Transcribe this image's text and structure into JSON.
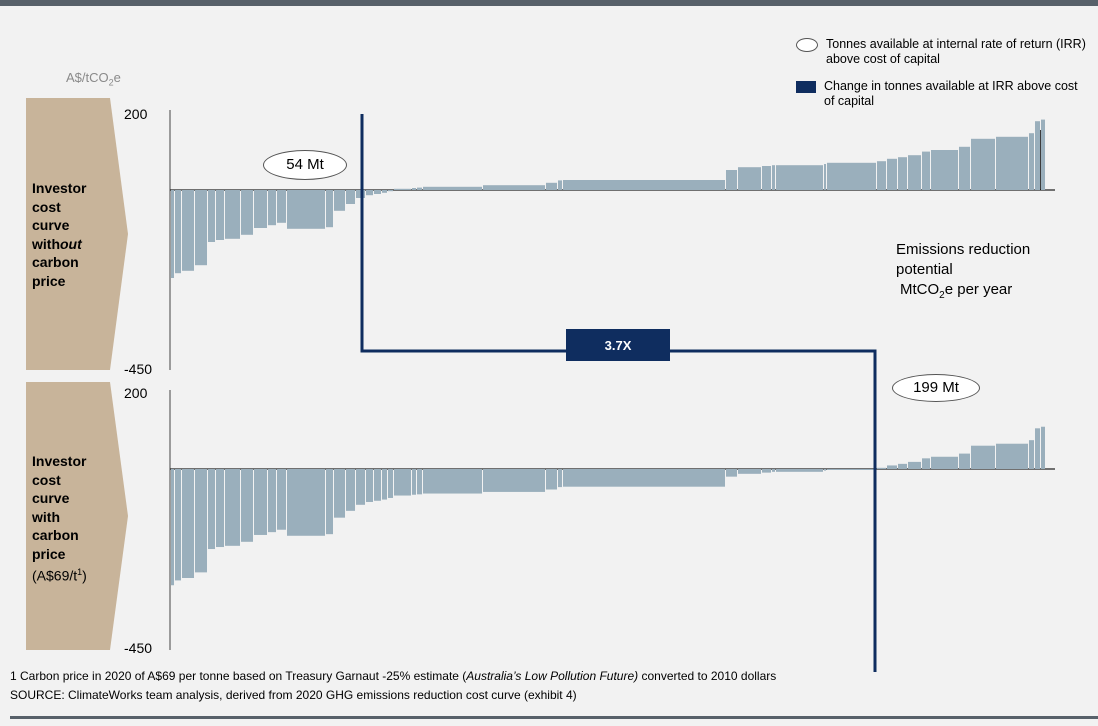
{
  "chart_data": [
    {
      "type": "bar",
      "panel": "Investor cost curve without carbon price",
      "title": "",
      "xlabel": "Emissions reduction potential MtCO2e per year",
      "ylabel": "A$/tCO2e",
      "ylim": [
        -450,
        200
      ],
      "ytick_labels": [
        "200",
        "-450"
      ],
      "bars": [
        {
          "width": 4,
          "value": -220
        },
        {
          "width": 7,
          "value": -208
        },
        {
          "width": 13,
          "value": -202
        },
        {
          "width": 13,
          "value": -188
        },
        {
          "width": 8,
          "value": -130
        },
        {
          "width": 9,
          "value": -125
        },
        {
          "width": 16,
          "value": -122
        },
        {
          "width": 13,
          "value": -112
        },
        {
          "width": 14,
          "value": -95
        },
        {
          "width": 9,
          "value": -88
        },
        {
          "width": 10,
          "value": -82
        },
        {
          "width": 39,
          "value": -97
        },
        {
          "width": 8,
          "value": -93
        },
        {
          "width": 12,
          "value": -52
        },
        {
          "width": 10,
          "value": -35
        },
        {
          "width": 10,
          "value": -20
        },
        {
          "width": 8,
          "value": -13
        },
        {
          "width": 8,
          "value": -10
        },
        {
          "width": 6,
          "value": -7
        },
        {
          "width": 6,
          "value": -3
        },
        {
          "width": 18,
          "value": 3
        },
        {
          "width": 5,
          "value": 5
        },
        {
          "width": 6,
          "value": 6
        },
        {
          "width": 60,
          "value": 8
        },
        {
          "width": 63,
          "value": 12
        },
        {
          "width": 12,
          "value": 18
        },
        {
          "width": 5,
          "value": 24
        },
        {
          "width": 163,
          "value": 25
        },
        {
          "width": 12,
          "value": 50
        },
        {
          "width": 24,
          "value": 57
        },
        {
          "width": 10,
          "value": 60
        },
        {
          "width": 4,
          "value": 62
        },
        {
          "width": 48,
          "value": 62
        },
        {
          "width": 3,
          "value": 65
        },
        {
          "width": 50,
          "value": 68
        },
        {
          "width": 10,
          "value": 72
        },
        {
          "width": 11,
          "value": 78
        },
        {
          "width": 10,
          "value": 82
        },
        {
          "width": 14,
          "value": 87
        },
        {
          "width": 9,
          "value": 96
        },
        {
          "width": 28,
          "value": 100
        },
        {
          "width": 12,
          "value": 108
        },
        {
          "width": 25,
          "value": 128
        },
        {
          "width": 33,
          "value": 133
        },
        {
          "width": 6,
          "value": 142
        },
        {
          "width": 6,
          "value": 172
        },
        {
          "width": 5,
          "value": 176
        }
      ],
      "callout": "54 Mt"
    },
    {
      "type": "bar",
      "panel": "Investor cost curve with carbon price (A$69/t1)",
      "title": "",
      "xlabel": "",
      "ylabel": "",
      "ylim": [
        -450,
        200
      ],
      "ytick_labels": [
        "200",
        "-450"
      ],
      "bars": [
        {
          "width": 4,
          "value": -289
        },
        {
          "width": 7,
          "value": -277
        },
        {
          "width": 13,
          "value": -271
        },
        {
          "width": 13,
          "value": -257
        },
        {
          "width": 8,
          "value": -199
        },
        {
          "width": 9,
          "value": -194
        },
        {
          "width": 16,
          "value": -191
        },
        {
          "width": 13,
          "value": -181
        },
        {
          "width": 14,
          "value": -164
        },
        {
          "width": 9,
          "value": -157
        },
        {
          "width": 10,
          "value": -151
        },
        {
          "width": 39,
          "value": -166
        },
        {
          "width": 8,
          "value": -162
        },
        {
          "width": 12,
          "value": -121
        },
        {
          "width": 10,
          "value": -104
        },
        {
          "width": 10,
          "value": -89
        },
        {
          "width": 8,
          "value": -82
        },
        {
          "width": 8,
          "value": -79
        },
        {
          "width": 6,
          "value": -76
        },
        {
          "width": 6,
          "value": -72
        },
        {
          "width": 18,
          "value": -66
        },
        {
          "width": 5,
          "value": -64
        },
        {
          "width": 6,
          "value": -63
        },
        {
          "width": 60,
          "value": -61
        },
        {
          "width": 63,
          "value": -57
        },
        {
          "width": 12,
          "value": -51
        },
        {
          "width": 5,
          "value": -45
        },
        {
          "width": 163,
          "value": -44
        },
        {
          "width": 12,
          "value": -19
        },
        {
          "width": 24,
          "value": -12
        },
        {
          "width": 10,
          "value": -9
        },
        {
          "width": 4,
          "value": -7
        },
        {
          "width": 48,
          "value": -7
        },
        {
          "width": 3,
          "value": -4
        },
        {
          "width": 50,
          "value": -1
        },
        {
          "width": 10,
          "value": 3
        },
        {
          "width": 11,
          "value": 9
        },
        {
          "width": 10,
          "value": 13
        },
        {
          "width": 14,
          "value": 18
        },
        {
          "width": 9,
          "value": 27
        },
        {
          "width": 28,
          "value": 31
        },
        {
          "width": 12,
          "value": 39
        },
        {
          "width": 25,
          "value": 59
        },
        {
          "width": 33,
          "value": 64
        },
        {
          "width": 6,
          "value": 73
        },
        {
          "width": 6,
          "value": 103
        },
        {
          "width": 5,
          "value": 107
        }
      ],
      "callout": "199 Mt"
    }
  ],
  "legend": [
    {
      "shape": "ellipse",
      "label": "Tonnes available at internal rate of return (IRR) above cost of capital"
    },
    {
      "shape": "rect",
      "color": "#0f2d5f",
      "label": "Change in tonnes available at IRR above cost of capital"
    }
  ],
  "ylabel_text": {
    "pre": "A$/tCO",
    "sub": "2",
    "post": "e"
  },
  "ticks": {
    "top_200": "200",
    "top_neg450": "-450",
    "bot_200": "200",
    "bot_neg450": "-450"
  },
  "callouts": {
    "top": "54 Mt",
    "bottom": "199 Mt",
    "ratio": "3.7X"
  },
  "panels": {
    "top": {
      "label_lines": [
        "Investor",
        "cost",
        "curve",
        "with",
        "out",
        "carbon",
        "price"
      ]
    },
    "bottom": {
      "label_lines": [
        "Investor",
        "cost",
        "curve",
        "with",
        "carbon",
        "price",
        "(A$69/t",
        "1",
        ")"
      ]
    }
  },
  "emissions_label": {
    "line1": "Emissions reduction",
    "line2": "potential",
    "line3_pre": "MtCO",
    "line3_sub": "2",
    "line3_post": "e per year"
  },
  "footnote": {
    "pre": "1 Carbon price in 2020 of A$69 per tonne based on Treasury Garnaut -25% estimate (",
    "italic": "Australia’s Low Pollution Future)",
    "post": " converted to 2010 dollars"
  },
  "source": "SOURCE: ClimateWorks team analysis, derived from 2020 GHG emissions reduction cost curve (exhibit 4)",
  "colors": {
    "bar": "#9aafbc",
    "navy": "#0f2d5f",
    "chevron": "#c8b49a",
    "topbar": "#58616a"
  }
}
